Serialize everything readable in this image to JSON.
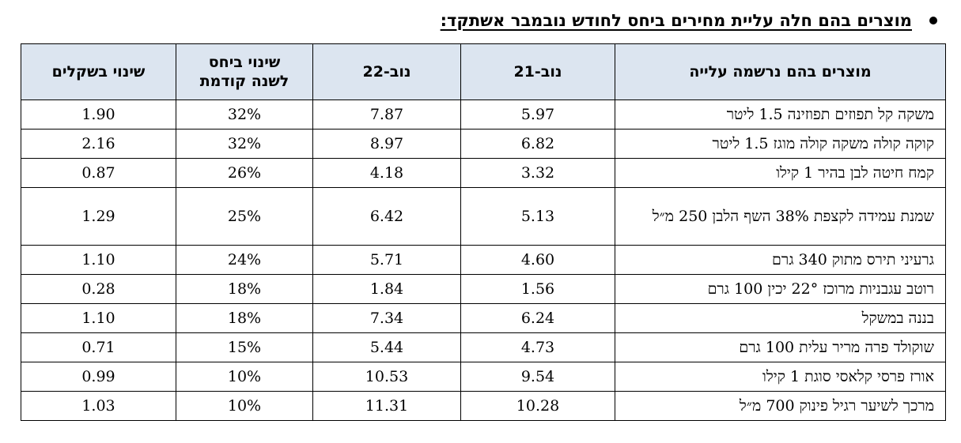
{
  "heading": "מוצרים בהם חלה עליית מחירים ביחס לחודש נובמבר אשתקד:",
  "table": {
    "headers": {
      "product": "מוצרים בהם נרשמה עלייה",
      "nov21": "נוב-21",
      "nov22": "נוב-22",
      "pct": "שינוי ביחס\nלשנה קודמת",
      "abs": "שינוי בשקלים"
    },
    "rows": [
      {
        "product": "משקה קל תפוזים תפוזינה 1.5 ליטר",
        "nov21": "5.97",
        "nov22": "7.87",
        "pct": "32%",
        "abs": "1.90"
      },
      {
        "product": "קוקה קולה משקה קולה מוגז 1.5 ליטר",
        "nov21": "6.82",
        "nov22": "8.97",
        "pct": "32%",
        "abs": "2.16"
      },
      {
        "product": "קמח חיטה לבן בהיר 1 קילו",
        "nov21": "3.32",
        "nov22": "4.18",
        "pct": "26%",
        "abs": "0.87"
      },
      {
        "product": "שמנת עמידה לקצפת 38% השף הלבן 250 מ״ל",
        "nov21": "5.13",
        "nov22": "6.42",
        "pct": "25%",
        "abs": "1.29"
      },
      {
        "product": "גרעיני תירס מתוק 340 גרם",
        "nov21": "4.60",
        "nov22": "5.71",
        "pct": "24%",
        "abs": "1.10"
      },
      {
        "product": "רוטב עגבניות מרוכז 22° יכין 100 גרם",
        "nov21": "1.56",
        "nov22": "1.84",
        "pct": "18%",
        "abs": "0.28"
      },
      {
        "product": "בננה במשקל",
        "nov21": "6.24",
        "nov22": "7.34",
        "pct": "18%",
        "abs": "1.10"
      },
      {
        "product": "שוקולד פרה מריר עלית 100 גרם",
        "nov21": "4.73",
        "nov22": "5.44",
        "pct": "15%",
        "abs": "0.71"
      },
      {
        "product": "אורז פרסי קלאסי סוגת 1 קילו",
        "nov21": "9.54",
        "nov22": "10.53",
        "pct": "10%",
        "abs": "0.99"
      },
      {
        "product": "מרכך לשיער רגיל פינוק 700 מ״ל",
        "nov21": "10.28",
        "nov22": "11.31",
        "pct": "10%",
        "abs": "1.03"
      }
    ]
  }
}
